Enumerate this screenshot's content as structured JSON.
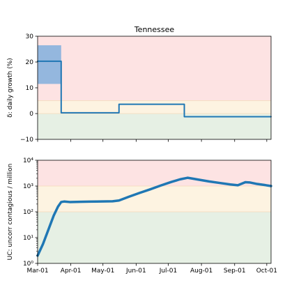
{
  "chart_data": [
    {
      "type": "line",
      "title": "Tennessee",
      "ylabel": "δ: daily growth (%)",
      "xlabel": "",
      "ylim": [
        -10,
        30
      ],
      "yticks": [
        "−10",
        "0",
        "10",
        "20",
        "30"
      ],
      "ytick_values": [
        -10,
        0,
        10,
        20,
        30
      ],
      "xticks": [
        "Mar-01",
        "Apr-01",
        "May-01",
        "Jun-01",
        "Jul-01",
        "Aug-01",
        "Sep-01",
        "Oct-01"
      ],
      "xtick_days": [
        0,
        31,
        61,
        92,
        122,
        153,
        184,
        214
      ],
      "xlim_days": [
        0,
        218
      ],
      "zones": [
        {
          "from": 5,
          "to": 30,
          "color": "#fde3e3"
        },
        {
          "from": 0,
          "to": 5,
          "color": "#fdf3e1"
        },
        {
          "from": -10,
          "to": 0,
          "color": "#e6f0e4"
        }
      ],
      "uncertainty_band": {
        "x0": 0,
        "x1": 22,
        "low": 11.5,
        "high": 26.5,
        "color": "#94b7de"
      },
      "series": [
        {
          "color": "#1f77b4",
          "step": true,
          "points": [
            [
              0,
              20.3
            ],
            [
              22,
              20.3
            ],
            [
              22,
              0.3
            ],
            [
              76,
              0.3
            ],
            [
              76,
              3.6
            ],
            [
              137,
              3.6
            ],
            [
              137,
              -1.2
            ],
            [
              218,
              -1.2
            ]
          ]
        }
      ]
    },
    {
      "type": "line",
      "title": "",
      "ylabel": "UC: uncorr contagious / million",
      "xlabel": "",
      "yscale": "log",
      "ylim_exp": [
        0,
        4
      ],
      "yticks": [
        "10⁰",
        "10¹",
        "10²",
        "10³",
        "10⁴"
      ],
      "ytick_values": [
        0,
        1,
        2,
        3,
        4
      ],
      "xticks": [
        "Mar-01",
        "Apr-01",
        "May-01",
        "Jun-01",
        "Jul-01",
        "Aug-01",
        "Sep-01",
        "Oct-01"
      ],
      "xtick_days": [
        0,
        31,
        61,
        92,
        122,
        153,
        184,
        214
      ],
      "xlim_days": [
        0,
        218
      ],
      "zones": [
        {
          "from_exp": 3,
          "to_exp": 4,
          "color": "#fde3e3"
        },
        {
          "from_exp": 2,
          "to_exp": 3,
          "color": "#fdf3e1"
        },
        {
          "from_exp": 0,
          "to_exp": 2,
          "color": "#e6f0e4"
        }
      ],
      "series": [
        {
          "color": "#1f77b4",
          "log_points": [
            [
              0,
              0.3
            ],
            [
              5,
              0.75
            ],
            [
              10,
              1.3
            ],
            [
              15,
              1.85
            ],
            [
              19,
              2.2
            ],
            [
              22,
              2.38
            ],
            [
              25,
              2.4
            ],
            [
              30,
              2.38
            ],
            [
              40,
              2.39
            ],
            [
              55,
              2.4
            ],
            [
              70,
              2.41
            ],
            [
              76,
              2.44
            ],
            [
              85,
              2.58
            ],
            [
              95,
              2.73
            ],
            [
              105,
              2.87
            ],
            [
              115,
              3.02
            ],
            [
              125,
              3.16
            ],
            [
              133,
              3.26
            ],
            [
              140,
              3.32
            ],
            [
              143,
              3.3
            ],
            [
              150,
              3.25
            ],
            [
              160,
              3.18
            ],
            [
              170,
              3.12
            ],
            [
              180,
              3.06
            ],
            [
              187,
              3.03
            ],
            [
              190,
              3.08
            ],
            [
              194,
              3.15
            ],
            [
              198,
              3.14
            ],
            [
              205,
              3.08
            ],
            [
              212,
              3.04
            ],
            [
              218,
              3.0
            ]
          ]
        }
      ]
    }
  ]
}
